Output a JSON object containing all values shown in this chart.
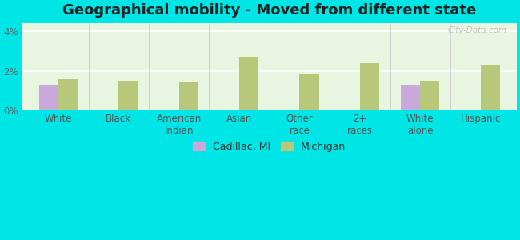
{
  "title": "Geographical mobility - Moved from different state",
  "categories": [
    "White",
    "Black",
    "American\nIndian",
    "Asian",
    "Other\nrace",
    "2+\nraces",
    "White\nalone",
    "Hispanic"
  ],
  "cadillac_values": [
    1.3,
    0.0,
    0.0,
    0.0,
    0.0,
    0.0,
    1.3,
    0.0
  ],
  "michigan_values": [
    1.6,
    1.5,
    1.4,
    2.7,
    1.85,
    2.4,
    1.5,
    2.3
  ],
  "cadillac_color": "#c9a8dc",
  "michigan_color": "#b8c87a",
  "figure_bg_color": "#00e5e5",
  "plot_bg_color": "#e8f5e0",
  "ylim": [
    0,
    4.4
  ],
  "yticks": [
    0,
    2,
    4
  ],
  "ytick_labels": [
    "0%",
    "2%",
    "4%"
  ],
  "legend_cadillac": "Cadillac, MI",
  "legend_michigan": "Michigan",
  "bar_width": 0.32,
  "title_fontsize": 13,
  "tick_fontsize": 8.5,
  "legend_fontsize": 9,
  "watermark": "City-Data.com"
}
